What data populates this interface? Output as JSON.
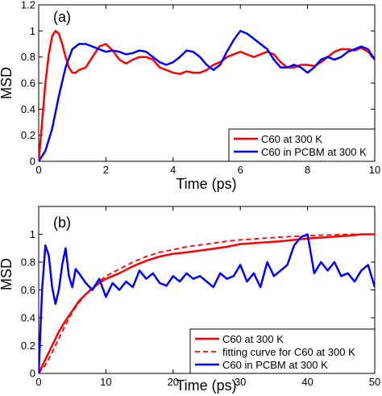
{
  "chart_data": [
    {
      "type": "line",
      "panel_label": "(a)",
      "xlabel": "Time (ps)",
      "ylabel": "MSD",
      "xlim": [
        0,
        10
      ],
      "ylim": [
        0,
        1.2
      ],
      "xticks": [
        0,
        2,
        4,
        6,
        8,
        10
      ],
      "xtick_labels": [
        "0",
        "2",
        "4",
        "6",
        "8",
        "10"
      ],
      "yticks": [
        0,
        0.2,
        0.4,
        0.6,
        0.8,
        1,
        1.2
      ],
      "ytick_labels": [
        "0",
        "0.2",
        "0.4",
        "0.6",
        "0.8",
        "1",
        "1.2"
      ],
      "grid": false,
      "legend_position": "bottom-right",
      "series": [
        {
          "name": "C60 at 300 K",
          "color": "#ff0000",
          "dash": "solid",
          "x": [
            0,
            0.1,
            0.2,
            0.3,
            0.4,
            0.5,
            0.6,
            0.7,
            0.8,
            0.9,
            1.0,
            1.1,
            1.2,
            1.4,
            1.6,
            1.8,
            2.0,
            2.2,
            2.4,
            2.6,
            2.8,
            3.0,
            3.2,
            3.4,
            3.6,
            3.8,
            4.0,
            4.2,
            4.4,
            4.6,
            4.8,
            5.0,
            5.2,
            5.4,
            5.6,
            5.8,
            6.0,
            6.2,
            6.4,
            6.6,
            6.8,
            7.0,
            7.2,
            7.4,
            7.6,
            7.8,
            8.0,
            8.2,
            8.4,
            8.6,
            8.8,
            9.0,
            9.2,
            9.4,
            9.6,
            9.8,
            10.0
          ],
          "y": [
            0,
            0.3,
            0.6,
            0.82,
            0.96,
            1.0,
            0.98,
            0.9,
            0.8,
            0.72,
            0.68,
            0.68,
            0.7,
            0.72,
            0.8,
            0.88,
            0.9,
            0.85,
            0.78,
            0.75,
            0.78,
            0.8,
            0.8,
            0.78,
            0.72,
            0.7,
            0.68,
            0.67,
            0.69,
            0.68,
            0.68,
            0.7,
            0.74,
            0.76,
            0.8,
            0.82,
            0.84,
            0.82,
            0.8,
            0.82,
            0.84,
            0.82,
            0.76,
            0.72,
            0.72,
            0.74,
            0.74,
            0.73,
            0.76,
            0.8,
            0.84,
            0.86,
            0.86,
            0.85,
            0.87,
            0.84,
            0.78
          ]
        },
        {
          "name": "C60 in PCBM at 300 K",
          "color": "#0000ff",
          "dash": "solid",
          "x": [
            0,
            0.2,
            0.4,
            0.6,
            0.8,
            1.0,
            1.2,
            1.4,
            1.6,
            1.8,
            2.0,
            2.2,
            2.4,
            2.6,
            2.8,
            3.0,
            3.2,
            3.4,
            3.6,
            3.8,
            4.0,
            4.2,
            4.4,
            4.6,
            4.8,
            5.0,
            5.2,
            5.4,
            5.6,
            5.8,
            6.0,
            6.2,
            6.4,
            6.6,
            6.8,
            7.0,
            7.2,
            7.4,
            7.6,
            7.8,
            8.0,
            8.2,
            8.4,
            8.6,
            8.8,
            9.0,
            9.2,
            9.4,
            9.6,
            9.8,
            10.0
          ],
          "y": [
            0,
            0.08,
            0.25,
            0.5,
            0.72,
            0.86,
            0.9,
            0.9,
            0.88,
            0.86,
            0.84,
            0.85,
            0.84,
            0.82,
            0.83,
            0.85,
            0.84,
            0.8,
            0.76,
            0.74,
            0.76,
            0.8,
            0.85,
            0.84,
            0.8,
            0.74,
            0.7,
            0.74,
            0.84,
            0.93,
            1.0,
            0.98,
            0.94,
            0.9,
            0.86,
            0.78,
            0.72,
            0.72,
            0.74,
            0.72,
            0.68,
            0.72,
            0.78,
            0.8,
            0.78,
            0.8,
            0.84,
            0.86,
            0.88,
            0.86,
            0.78
          ]
        }
      ]
    },
    {
      "type": "line",
      "panel_label": "(b)",
      "xlabel": "Time (ps)",
      "ylabel": "MSD",
      "xlim": [
        0,
        50
      ],
      "ylim": [
        0,
        1.2
      ],
      "xticks": [
        0,
        10,
        20,
        30,
        40,
        50
      ],
      "xtick_labels": [
        "0",
        "10",
        "20",
        "30",
        "40",
        "50"
      ],
      "yticks": [
        0,
        0.2,
        0.4,
        0.6,
        0.8,
        1
      ],
      "ytick_labels": [
        "0",
        "0.2",
        "0.4",
        "0.6",
        "0.8",
        "1"
      ],
      "grid": false,
      "legend_position": "bottom-right",
      "series": [
        {
          "name": "C60 at 300 K",
          "color": "#ff0000",
          "dash": "solid",
          "x": [
            0,
            1,
            2,
            3,
            4,
            5,
            6,
            7,
            8,
            9,
            10,
            12,
            14,
            16,
            18,
            20,
            22,
            25,
            28,
            30,
            33,
            36,
            40,
            43,
            46,
            48,
            50
          ],
          "y": [
            0,
            0.1,
            0.2,
            0.3,
            0.38,
            0.45,
            0.52,
            0.57,
            0.61,
            0.65,
            0.68,
            0.72,
            0.77,
            0.81,
            0.84,
            0.86,
            0.87,
            0.89,
            0.91,
            0.93,
            0.94,
            0.95,
            0.97,
            0.98,
            0.99,
            1.0,
            1.0
          ]
        },
        {
          "name": "fitting curve for C60 at 300 K",
          "color": "#ff0000",
          "dash": "dashed",
          "x": [
            0,
            1,
            2,
            3,
            4,
            5,
            6,
            7,
            8,
            9,
            10,
            12,
            14,
            16,
            18,
            20,
            22,
            25,
            28,
            30,
            33,
            36,
            40,
            43,
            46,
            48,
            50
          ],
          "y": [
            0,
            0.06,
            0.15,
            0.25,
            0.35,
            0.44,
            0.51,
            0.57,
            0.62,
            0.66,
            0.7,
            0.75,
            0.8,
            0.84,
            0.87,
            0.89,
            0.91,
            0.93,
            0.95,
            0.96,
            0.97,
            0.98,
            0.99,
            0.995,
            1.0,
            1.0,
            1.0
          ]
        },
        {
          "name": "C60 in PCBM at 300 K",
          "color": "#0000ff",
          "dash": "solid",
          "x": [
            0,
            0.5,
            1,
            1.5,
            2,
            2.5,
            3,
            3.5,
            4,
            4.5,
            5,
            5.5,
            6,
            7,
            8,
            9,
            10,
            11,
            12,
            13,
            14,
            15,
            16,
            17,
            18,
            19,
            20,
            21,
            22,
            23,
            24,
            25,
            26,
            27,
            28,
            29,
            30,
            31,
            32,
            33,
            34,
            35,
            36,
            37,
            38,
            39,
            40,
            41,
            42,
            43,
            44,
            45,
            46,
            47,
            48,
            49,
            50
          ],
          "y": [
            0,
            0.6,
            0.92,
            0.85,
            0.62,
            0.5,
            0.6,
            0.78,
            0.9,
            0.7,
            0.62,
            0.75,
            0.72,
            0.65,
            0.6,
            0.68,
            0.55,
            0.65,
            0.6,
            0.66,
            0.62,
            0.74,
            0.68,
            0.72,
            0.65,
            0.63,
            0.7,
            0.66,
            0.72,
            0.68,
            0.7,
            0.66,
            0.62,
            0.72,
            0.68,
            0.7,
            0.78,
            0.66,
            0.72,
            0.62,
            0.8,
            0.7,
            0.74,
            0.78,
            0.92,
            0.98,
            1.0,
            0.72,
            0.8,
            0.74,
            0.8,
            0.7,
            0.72,
            0.66,
            0.74,
            0.78,
            0.62
          ]
        }
      ]
    }
  ]
}
